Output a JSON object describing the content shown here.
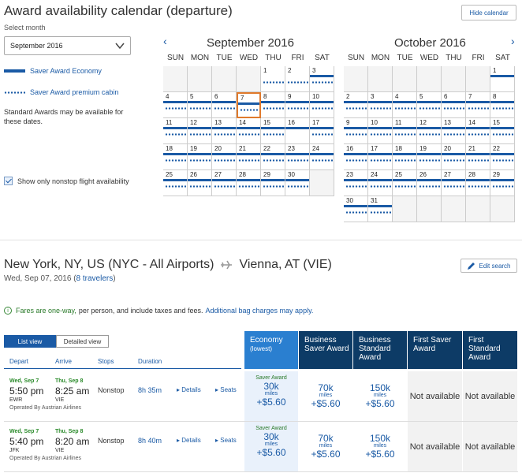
{
  "header": {
    "title": "Award availability calendar (departure)",
    "hide_label": "Hide calendar",
    "select_label": "Select month",
    "selected_month": "September 2016"
  },
  "legend": {
    "economy": "Saver Award Economy",
    "premium": "Saver Award premium cabin",
    "standard_note": "Standard Awards may be available for these dates.",
    "nonstop_label": "Show only nonstop flight availability"
  },
  "weekdays": [
    "SUN",
    "MON",
    "TUE",
    "WED",
    "THU",
    "FRI",
    "SAT"
  ],
  "calendars": [
    {
      "title": "September 2016",
      "start": 4,
      "days": 30,
      "selected": 7,
      "bars": [
        3,
        4,
        5,
        6,
        7,
        8,
        9,
        10,
        11,
        12,
        13,
        14,
        15,
        16,
        17,
        18,
        19,
        20,
        21,
        22,
        23,
        24,
        25,
        26,
        27,
        28,
        29,
        30
      ],
      "dots": [
        1,
        2,
        3,
        4,
        5,
        6,
        7,
        8,
        9,
        10,
        11,
        12,
        13,
        14,
        15,
        17,
        18,
        19,
        20,
        21,
        22,
        23,
        24,
        25,
        26,
        27,
        28,
        29,
        30
      ]
    },
    {
      "title": "October 2016",
      "start": 6,
      "days": 31,
      "selected": null,
      "bars": [
        1,
        2,
        3,
        4,
        5,
        6,
        7,
        8,
        9,
        10,
        11,
        12,
        13,
        14,
        15,
        16,
        17,
        18,
        19,
        20,
        21,
        22,
        23,
        24,
        25,
        26,
        27,
        28,
        29,
        30,
        31
      ],
      "dots": [
        2,
        3,
        4,
        5,
        6,
        7,
        8,
        9,
        10,
        11,
        12,
        13,
        14,
        15,
        16,
        17,
        18,
        19,
        20,
        21,
        22,
        23,
        24,
        25,
        26,
        27,
        28,
        29,
        30,
        31
      ]
    }
  ],
  "route": {
    "origin": "New York, NY, US (NYC - All Airports)",
    "destination": "Vienna, AT (VIE)",
    "date": "Wed, Sep 07, 2016 (",
    "travelers": "8 travelers",
    "date_close": ")",
    "edit_label": "Edit search"
  },
  "fare_note": {
    "bold": "Fares are one-way,",
    "text": "per person, and include taxes and fees.",
    "link": "Additional bag charges may apply."
  },
  "tabs": {
    "list": "List view",
    "detail": "Detailed view"
  },
  "columns": {
    "depart": "Depart",
    "arrive": "Arrive",
    "stops": "Stops",
    "duration": "Duration"
  },
  "fare_columns": [
    {
      "label": "Economy",
      "sub": "(lowest)"
    },
    {
      "label": "Business Saver Award",
      "sub": ""
    },
    {
      "label": "Business Standard Award",
      "sub": ""
    },
    {
      "label": "First Saver Award",
      "sub": ""
    },
    {
      "label": "First Standard Award",
      "sub": ""
    }
  ],
  "flights": [
    {
      "dep_date": "Wed, Sep 7",
      "dep_time": "5:50 pm",
      "dep_ap": "EWR",
      "arr_date": "Thu, Sep 8",
      "arr_time": "8:25 am",
      "arr_ap": "VIE",
      "operator": "Operated By Austrian Airlines",
      "stops": "Nonstop",
      "duration": "8h 35m",
      "details": "Details",
      "seats": "Seats",
      "prices": [
        {
          "saver": "Saver Award",
          "miles": "30k",
          "unit": "miles",
          "fee": "+$5.60"
        },
        {
          "miles": "70k",
          "unit": "miles",
          "fee": "+$5.60"
        },
        {
          "miles": "150k",
          "unit": "miles",
          "fee": "+$5.60"
        }
      ],
      "na": [
        "Not available",
        "Not available"
      ]
    },
    {
      "dep_date": "Wed, Sep 7",
      "dep_time": "5:40 pm",
      "dep_ap": "JFK",
      "arr_date": "Thu, Sep 8",
      "arr_time": "8:20 am",
      "arr_ap": "VIE",
      "operator": "Operated By Austrian Airlines",
      "stops": "Nonstop",
      "duration": "8h 40m",
      "details": "Details",
      "seats": "Seats",
      "prices": [
        {
          "saver": "Saver Award",
          "miles": "30k",
          "unit": "miles",
          "fee": "+$5.60"
        },
        {
          "miles": "70k",
          "unit": "miles",
          "fee": "+$5.60"
        },
        {
          "miles": "150k",
          "unit": "miles",
          "fee": "+$5.60"
        }
      ],
      "na": [
        "Not available",
        "Not available"
      ]
    }
  ]
}
